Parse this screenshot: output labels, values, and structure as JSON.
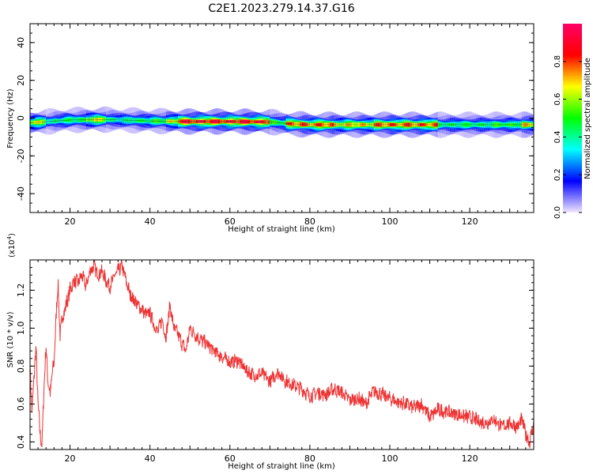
{
  "title": "C2E1.2023.279.14.37.G16",
  "chart_data": [
    {
      "type": "heatmap",
      "xlabel": "Height of straight line (km)",
      "ylabel": "Frequency (Hz)",
      "xlim": [
        10,
        136
      ],
      "ylim": [
        -50,
        50
      ],
      "x_ticks": [
        20,
        40,
        60,
        80,
        100,
        120
      ],
      "y_ticks": [
        -40,
        -20,
        0,
        20,
        40
      ],
      "colorbar": {
        "label": "Normalized spectral amplitude",
        "range": [
          0,
          1
        ],
        "ticks": [
          "0.0",
          "0.2",
          "0.4",
          "0.6",
          "0.8"
        ],
        "colors": [
          "#f2e6ff",
          "#0000ff",
          "#00ffff",
          "#00ff00",
          "#ffff00",
          "#ff0000",
          "#ff0066"
        ]
      },
      "ridge": {
        "x": [
          10,
          20,
          30,
          40,
          50,
          60,
          70,
          75,
          80,
          90,
          100,
          110,
          120,
          130,
          136
        ],
        "y": [
          -2.5,
          -1.0,
          -0.8,
          -1.5,
          -1.8,
          -1.8,
          -2.0,
          -3.0,
          -3.5,
          -3.5,
          -3.5,
          -3.5,
          -3.5,
          -3.5,
          -3.5
        ]
      },
      "segments": [
        {
          "x0": 10,
          "x1": 14,
          "level": 0.7
        },
        {
          "x0": 14,
          "x1": 16,
          "level": 0.4
        },
        {
          "x0": 16,
          "x1": 24,
          "level": 0.5
        },
        {
          "x0": 24,
          "x1": 29,
          "level": 0.7
        },
        {
          "x0": 29,
          "x1": 35,
          "level": 0.45
        },
        {
          "x0": 35,
          "x1": 40,
          "level": 0.5
        },
        {
          "x0": 40,
          "x1": 44,
          "level": 0.55
        },
        {
          "x0": 44,
          "x1": 47,
          "level": 0.7
        },
        {
          "x0": 47,
          "x1": 70,
          "level": 0.95
        },
        {
          "x0": 70,
          "x1": 74,
          "level": 0.55
        },
        {
          "x0": 74,
          "x1": 86,
          "level": 0.85
        },
        {
          "x0": 86,
          "x1": 96,
          "level": 0.75
        },
        {
          "x0": 96,
          "x1": 112,
          "level": 0.85
        },
        {
          "x0": 112,
          "x1": 126,
          "level": 0.5
        },
        {
          "x0": 126,
          "x1": 133,
          "level": 0.55
        },
        {
          "x0": 133,
          "x1": 136,
          "level": 0.75
        }
      ]
    },
    {
      "type": "line",
      "xlabel": "Height of straight line (km)",
      "ylabel": "SNR (10 * v/v)",
      "y_multiplier": "(x10",
      "y_multiplier_exp": "4",
      "y_multiplier_close": ")",
      "xlim": [
        10,
        136
      ],
      "ylim": [
        0.36,
        1.36
      ],
      "x_ticks": [
        20,
        40,
        60,
        80,
        100,
        120
      ],
      "y_ticks": [
        "0.4",
        "0.6",
        "0.8",
        "1.0",
        "1.2"
      ],
      "color": "#ee3333",
      "series": [
        {
          "x": [
            10,
            10.5,
            11,
            11.5,
            12,
            12.5,
            13,
            13.5,
            14,
            14.5,
            15,
            15.5,
            16,
            16.5,
            17,
            17.5,
            18,
            19,
            20,
            21,
            22,
            23,
            24,
            25,
            26,
            27,
            28,
            29,
            30,
            31,
            32,
            33,
            34,
            35,
            36,
            37,
            38,
            39,
            40,
            41,
            42,
            43,
            44,
            45,
            46,
            47,
            48,
            49,
            50,
            52,
            54,
            56,
            58,
            60,
            62,
            64,
            66,
            68,
            70,
            72,
            74,
            76,
            78,
            80,
            82,
            84,
            86,
            88,
            90,
            92,
            94,
            96,
            98,
            100,
            102,
            104,
            106,
            108,
            110,
            112,
            114,
            116,
            118,
            120,
            122,
            124,
            126,
            128,
            130,
            132,
            133,
            134,
            135,
            136
          ],
          "y": [
            0.8,
            0.55,
            0.75,
            0.9,
            0.6,
            0.45,
            0.38,
            0.7,
            0.9,
            0.72,
            0.65,
            0.75,
            0.82,
            1.05,
            1.25,
            0.95,
            1.05,
            1.12,
            1.2,
            1.25,
            1.24,
            1.28,
            1.22,
            1.3,
            1.33,
            1.28,
            1.3,
            1.25,
            1.22,
            1.27,
            1.3,
            1.33,
            1.25,
            1.18,
            1.15,
            1.12,
            1.1,
            1.07,
            1.08,
            1.02,
            0.98,
            1.05,
            0.95,
            1.12,
            1.0,
            0.97,
            0.92,
            0.88,
            1.0,
            0.95,
            0.92,
            0.88,
            0.85,
            0.82,
            0.83,
            0.78,
            0.75,
            0.76,
            0.72,
            0.77,
            0.72,
            0.7,
            0.68,
            0.64,
            0.66,
            0.65,
            0.68,
            0.66,
            0.62,
            0.63,
            0.6,
            0.67,
            0.65,
            0.63,
            0.61,
            0.6,
            0.58,
            0.6,
            0.53,
            0.57,
            0.56,
            0.55,
            0.54,
            0.53,
            0.51,
            0.5,
            0.52,
            0.48,
            0.5,
            0.48,
            0.52,
            0.44,
            0.4,
            0.5
          ]
        }
      ]
    }
  ]
}
